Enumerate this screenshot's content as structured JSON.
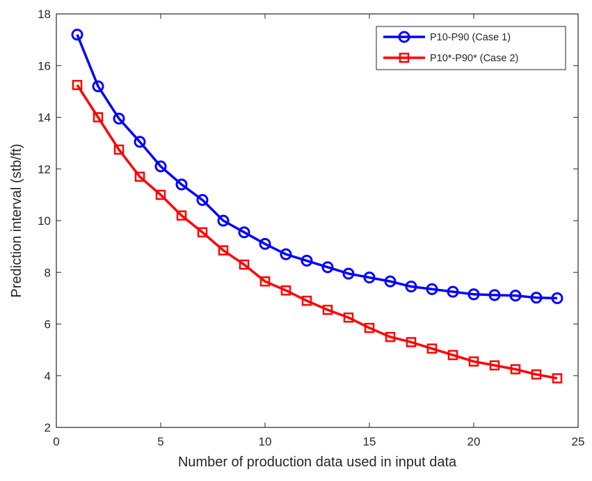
{
  "chart_data": {
    "type": "line",
    "title": "",
    "xlabel": "Number of production data used in input data",
    "ylabel": "Prediction interval (stb/ft)",
    "xlim": [
      0,
      25
    ],
    "ylim": [
      2,
      18
    ],
    "xticks": [
      0,
      5,
      10,
      15,
      20,
      25
    ],
    "yticks": [
      2,
      4,
      6,
      8,
      10,
      12,
      14,
      16,
      18
    ],
    "grid": false,
    "legend_position": "top-right",
    "x": [
      1,
      2,
      3,
      4,
      5,
      6,
      7,
      8,
      9,
      10,
      11,
      12,
      13,
      14,
      15,
      16,
      17,
      18,
      19,
      20,
      21,
      22,
      23,
      24
    ],
    "series": [
      {
        "name": "P10-P90 (Case 1)",
        "color": "#0000ff",
        "marker": "circle",
        "values": [
          17.2,
          15.2,
          13.95,
          13.05,
          12.1,
          11.4,
          10.8,
          10.0,
          9.55,
          9.1,
          8.7,
          8.45,
          8.2,
          7.95,
          7.8,
          7.65,
          7.45,
          7.35,
          7.25,
          7.15,
          7.12,
          7.1,
          7.02,
          7.0
        ]
      },
      {
        "name": "P10*-P90* (Case 2)",
        "color": "#ff0000",
        "marker": "square",
        "values": [
          15.25,
          14.0,
          12.75,
          11.7,
          11.0,
          10.2,
          9.55,
          8.85,
          8.3,
          7.65,
          7.3,
          6.9,
          6.55,
          6.25,
          5.85,
          5.5,
          5.3,
          5.05,
          4.8,
          4.55,
          4.4,
          4.25,
          4.05,
          3.9
        ]
      }
    ]
  }
}
